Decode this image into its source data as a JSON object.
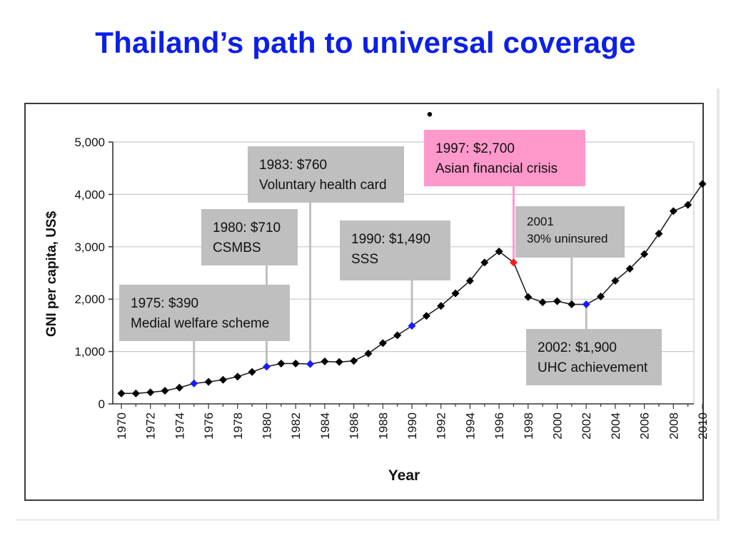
{
  "title": "Thailand’s path to universal coverage",
  "bullet": "•",
  "chart_data": {
    "type": "line",
    "xlabel": "Year",
    "ylabel": "GNI per capita, US$",
    "xlim": [
      1970,
      2010
    ],
    "ylim": [
      0,
      5000
    ],
    "y_ticks": [
      "0",
      "1,000",
      "2,000",
      "3,000",
      "4,000",
      "5,000"
    ],
    "x_ticks": [
      "1970",
      "1972",
      "1974",
      "1976",
      "1978",
      "1980",
      "1982",
      "1984",
      "1986",
      "1988",
      "1990",
      "1992",
      "1994",
      "1996",
      "1998",
      "2000",
      "2002",
      "2004",
      "2006",
      "2008",
      "2010"
    ],
    "grid": "horizontal",
    "series": [
      {
        "marker": "diamond",
        "color": "#000000",
        "x": [
          1970,
          1971,
          1972,
          1973,
          1974,
          1975,
          1976,
          1977,
          1978,
          1979,
          1980,
          1981,
          1982,
          1983,
          1984,
          1985,
          1986,
          1987,
          1988,
          1989,
          1990,
          1991,
          1992,
          1993,
          1994,
          1995,
          1996,
          1997,
          1998,
          1999,
          2000,
          2001,
          2002,
          2003,
          2004,
          2005,
          2006,
          2007,
          2008,
          2009,
          2010
        ],
        "y": [
          200,
          200,
          220,
          250,
          310,
          390,
          420,
          460,
          520,
          610,
          710,
          770,
          770,
          760,
          810,
          800,
          820,
          960,
          1160,
          1310,
          1490,
          1680,
          1870,
          2110,
          2350,
          2700,
          2910,
          2700,
          2040,
          1940,
          1960,
          1900,
          1900,
          2050,
          2350,
          2580,
          2860,
          3250,
          3680,
          3800,
          4200
        ]
      }
    ],
    "highlights": [
      {
        "x": 1975,
        "color": "#1a1aff"
      },
      {
        "x": 1980,
        "color": "#1a1aff"
      },
      {
        "x": 1983,
        "color": "#1a1aff"
      },
      {
        "x": 1990,
        "color": "#1a1aff"
      },
      {
        "x": 1997,
        "color": "#ff1a1a"
      },
      {
        "x": 2002,
        "color": "#1a1aff"
      }
    ],
    "annotations": [
      {
        "id": "a1975",
        "x": 1975,
        "lines": [
          "1975: $390",
          "Medial welfare scheme"
        ],
        "fill": "#bfbfbf"
      },
      {
        "id": "a1980",
        "x": 1980,
        "lines": [
          "1980: $710",
          "CSMBS"
        ],
        "fill": "#bfbfbf"
      },
      {
        "id": "a1983",
        "x": 1983,
        "lines": [
          "1983: $760",
          "Voluntary health card"
        ],
        "fill": "#bfbfbf"
      },
      {
        "id": "a1990",
        "x": 1990,
        "lines": [
          "1990: $1,490",
          "SSS"
        ],
        "fill": "#bfbfbf"
      },
      {
        "id": "a1997",
        "x": 1997,
        "lines": [
          "1997: $2,700",
          "Asian financial crisis"
        ],
        "fill": "#ff99cc"
      },
      {
        "id": "a2001",
        "x": 2001,
        "lines": [
          "2001",
          "30% uninsured"
        ],
        "fill": "#bfbfbf"
      },
      {
        "id": "a2002",
        "x": 2002,
        "lines": [
          "2002: $1,900",
          "UHC achievement"
        ],
        "fill": "#bfbfbf"
      }
    ]
  }
}
